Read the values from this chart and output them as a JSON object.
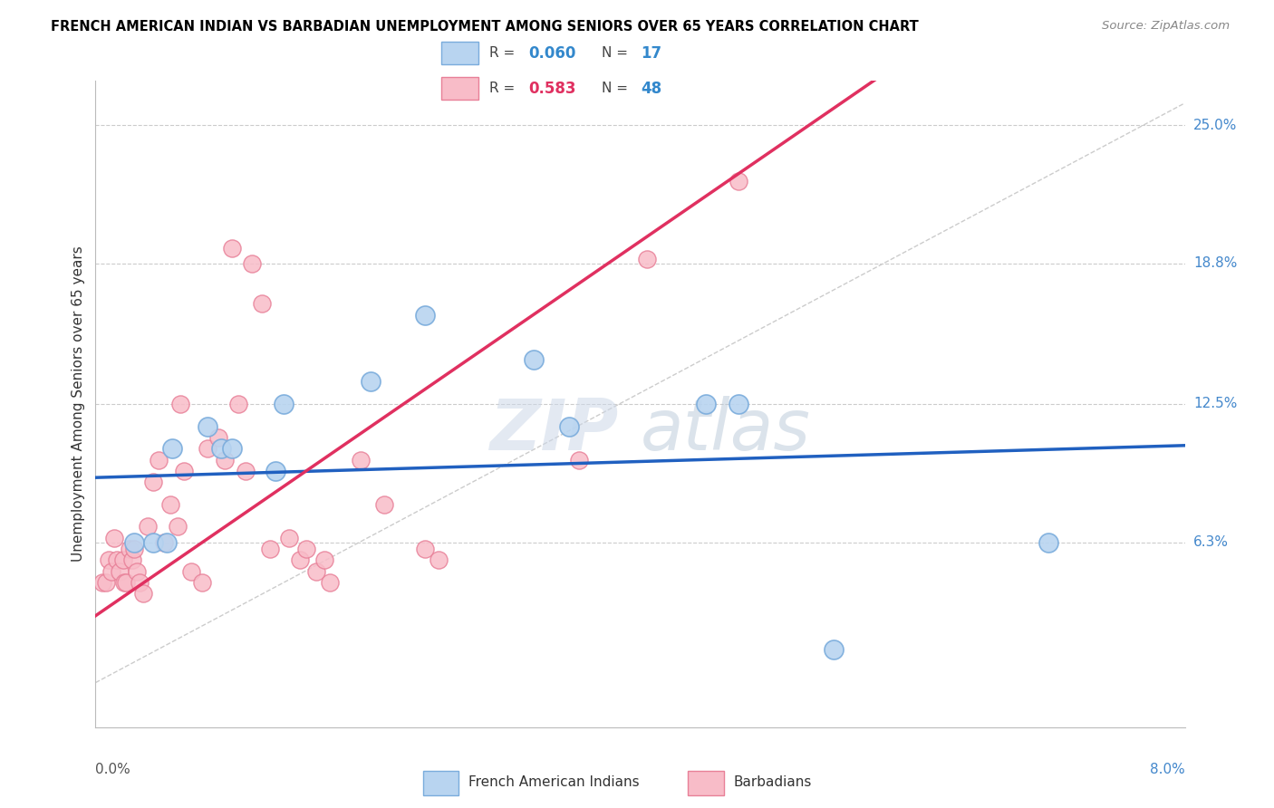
{
  "title": "FRENCH AMERICAN INDIAN VS BARBADIAN UNEMPLOYMENT AMONG SENIORS OVER 65 YEARS CORRELATION CHART",
  "source": "Source: ZipAtlas.com",
  "ylabel": "Unemployment Among Seniors over 65 years",
  "right_yticks": [
    6.3,
    12.5,
    18.8,
    25.0
  ],
  "right_ytick_labels": [
    "6.3%",
    "12.5%",
    "18.8%",
    "25.0%"
  ],
  "xmin": 0.0,
  "xmax": 8.0,
  "ymin": -2.0,
  "ymax": 27.0,
  "legend1_R": "0.060",
  "legend1_N": "17",
  "legend2_R": "0.583",
  "legend2_N": "48",
  "trend_blue_color": "#2060c0",
  "trend_pink_color": "#e03060",
  "diag_color": "#cccccc",
  "blue_scatter_x": [
    0.28,
    0.42,
    0.52,
    0.56,
    0.82,
    0.92,
    1.0,
    1.32,
    1.38,
    2.02,
    2.42,
    3.22,
    3.48,
    4.72,
    5.42,
    7.0,
    4.48
  ],
  "blue_scatter_y": [
    6.3,
    6.3,
    6.3,
    10.5,
    11.5,
    10.5,
    10.5,
    9.5,
    12.5,
    13.5,
    16.5,
    14.5,
    11.5,
    12.5,
    1.5,
    6.3,
    12.5
  ],
  "pink_scatter_x": [
    0.05,
    0.08,
    0.1,
    0.12,
    0.14,
    0.16,
    0.18,
    0.2,
    0.21,
    0.22,
    0.25,
    0.27,
    0.28,
    0.3,
    0.32,
    0.35,
    0.38,
    0.42,
    0.46,
    0.5,
    0.55,
    0.6,
    0.62,
    0.65,
    0.7,
    0.78,
    0.82,
    0.9,
    0.95,
    1.0,
    1.05,
    1.1,
    1.15,
    1.22,
    1.28,
    1.42,
    1.5,
    1.55,
    1.62,
    1.68,
    1.72,
    1.95,
    2.12,
    2.42,
    2.52,
    3.55,
    4.05,
    4.72
  ],
  "pink_scatter_y": [
    4.5,
    4.5,
    5.5,
    5.0,
    6.5,
    5.5,
    5.0,
    5.5,
    4.5,
    4.5,
    6.0,
    5.5,
    6.0,
    5.0,
    4.5,
    4.0,
    7.0,
    9.0,
    10.0,
    6.3,
    8.0,
    7.0,
    12.5,
    9.5,
    5.0,
    4.5,
    10.5,
    11.0,
    10.0,
    19.5,
    12.5,
    9.5,
    18.8,
    17.0,
    6.0,
    6.5,
    5.5,
    6.0,
    5.0,
    5.5,
    4.5,
    10.0,
    8.0,
    6.0,
    5.5,
    10.0,
    19.0,
    22.5
  ],
  "watermark_zip_color": "#cdd8e8",
  "watermark_atlas_color": "#b8c8d8"
}
